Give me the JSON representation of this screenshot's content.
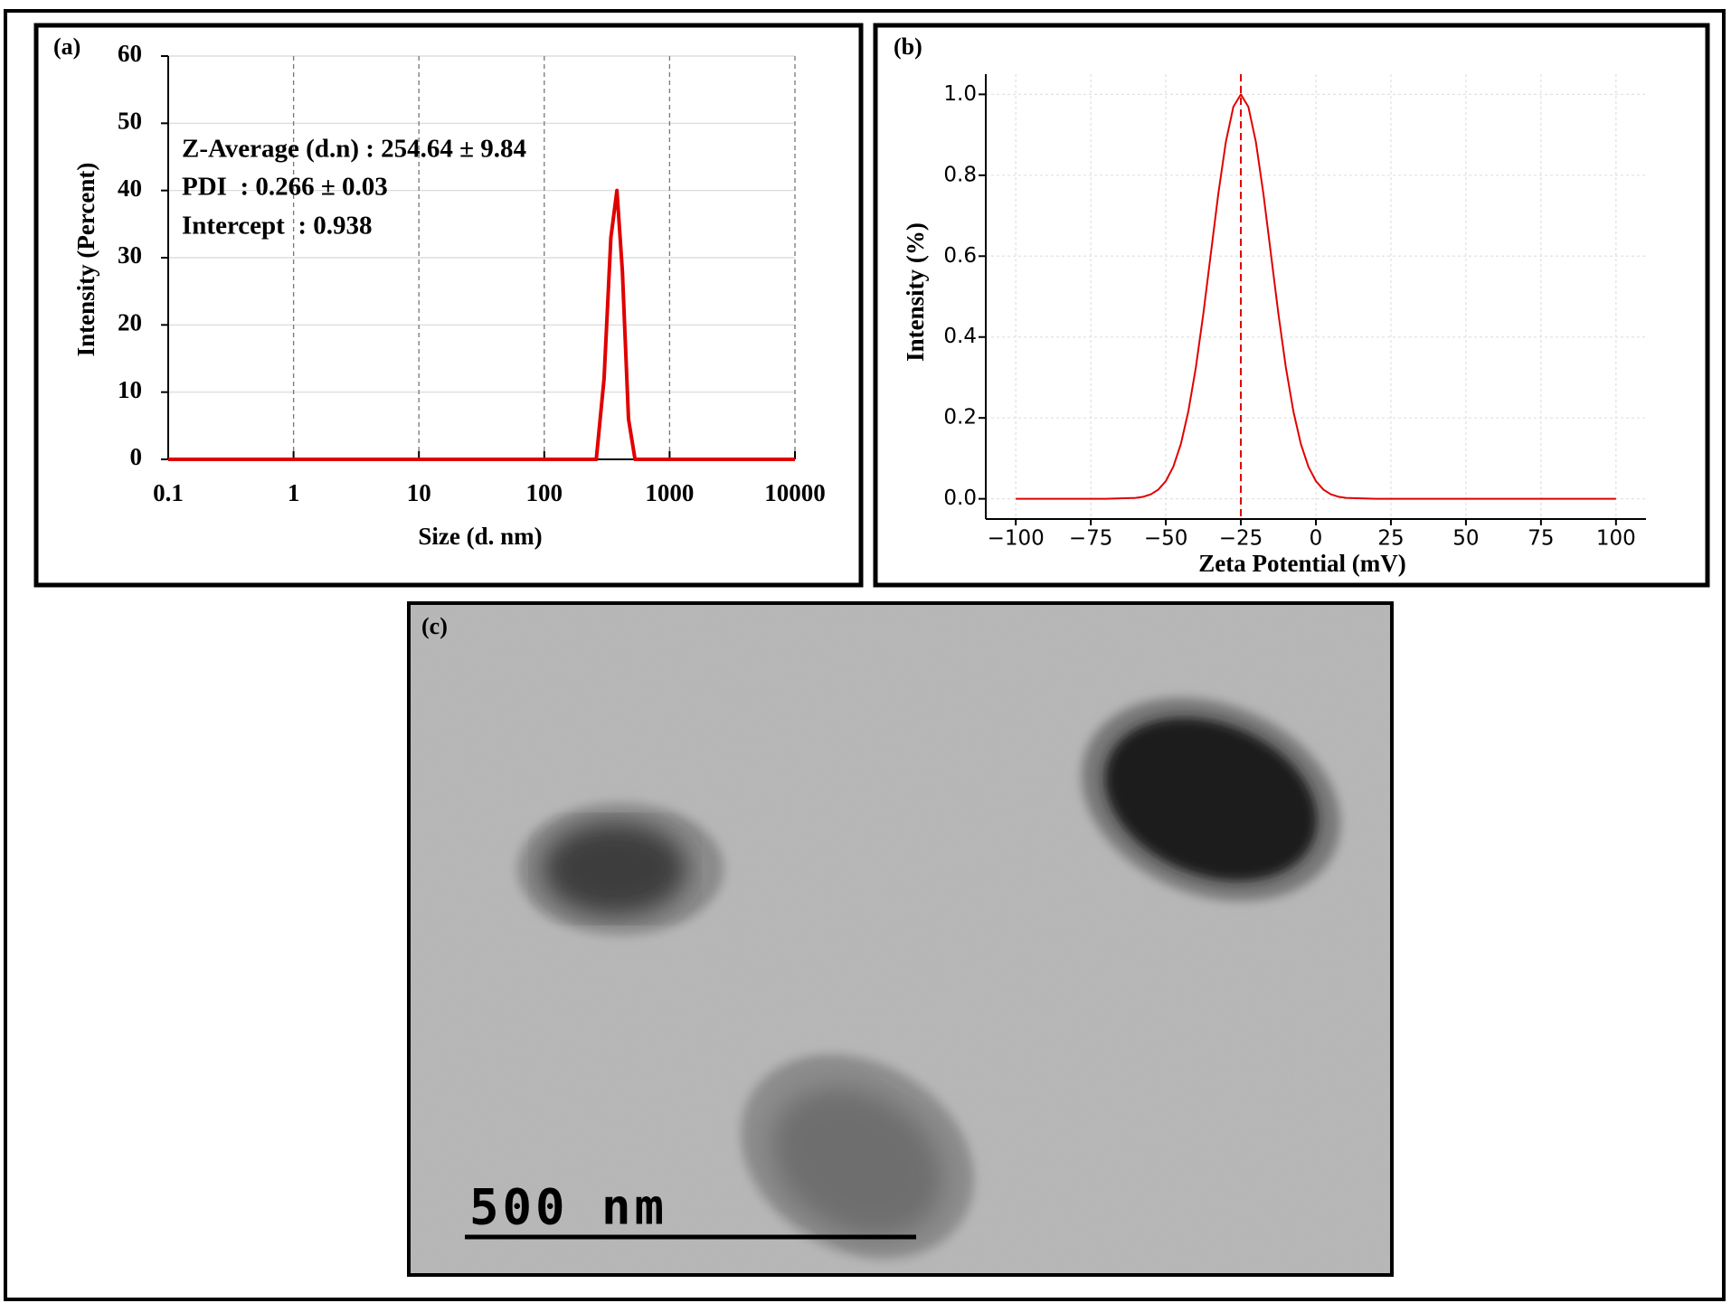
{
  "chart_data": [
    {
      "type": "line",
      "panel_label": "(a)",
      "x_label": "Size (d. nm)",
      "y_label": "Intensity (Percent)",
      "annotations": [
        "Z-Average (d.n) : 254.64 ± 9.84",
        "PDI  : 0.266 ± 0.03",
        "Intercept  : 0.938"
      ],
      "x": [
        0.1,
        260,
        300,
        340,
        380,
        420,
        470,
        530,
        10000
      ],
      "values": [
        0,
        0,
        12,
        33,
        40,
        28,
        6,
        0,
        0
      ],
      "color": "#e00000",
      "xscale": "log",
      "xlim": [
        0.1,
        10000
      ],
      "xticks": [
        0.1,
        1,
        10,
        100,
        1000,
        10000
      ],
      "ylim": [
        0,
        60
      ],
      "yticks": [
        0,
        10,
        20,
        30,
        40,
        50,
        60
      ],
      "grid": true
    },
    {
      "type": "line",
      "panel_label": "(b)",
      "x_label": "Zeta Potential (mV)",
      "y_label": "Intensity (%)",
      "x": [
        -100,
        -90,
        -80,
        -70,
        -60,
        -57.5,
        -55,
        -52.5,
        -50,
        -47.5,
        -45,
        -42.5,
        -40,
        -37.5,
        -35,
        -32.5,
        -30,
        -27.5,
        -25,
        -22.5,
        -20,
        -17.5,
        -15,
        -12.5,
        -10,
        -7.5,
        -5,
        -2.5,
        0,
        2.5,
        5,
        7.5,
        10,
        20,
        30,
        40,
        50,
        60,
        70,
        80,
        90,
        100
      ],
      "values": [
        0,
        0,
        0,
        0,
        0.0022,
        0.0051,
        0.0111,
        0.0228,
        0.0439,
        0.0796,
        0.1353,
        0.2163,
        0.3247,
        0.4578,
        0.6065,
        0.7548,
        0.8825,
        0.9692,
        1,
        0.9692,
        0.8825,
        0.7548,
        0.6065,
        0.4578,
        0.3247,
        0.2163,
        0.1353,
        0.0796,
        0.0439,
        0.0228,
        0.0111,
        0.0051,
        0.0022,
        0,
        0,
        0,
        0,
        0,
        0,
        0,
        0,
        0
      ],
      "color": "#e00000",
      "vline": -25,
      "xlim": [
        -110,
        110
      ],
      "xticks": [
        {
          "value": -100,
          "label": "−100"
        },
        {
          "value": -75,
          "label": "−75"
        },
        {
          "value": -50,
          "label": "−50"
        },
        {
          "value": -25,
          "label": "−25"
        },
        0,
        25,
        50,
        75,
        100
      ],
      "ylim": [
        -0.05,
        1.05
      ],
      "yticks": [
        {
          "value": 0,
          "label": "0.0"
        },
        {
          "value": 0.2,
          "label": "0.2"
        },
        {
          "value": 0.4,
          "label": "0.4"
        },
        {
          "value": 0.6,
          "label": "0.6"
        },
        {
          "value": 0.8,
          "label": "0.8"
        },
        {
          "value": 1,
          "label": "1.0"
        }
      ],
      "grid": true
    }
  ],
  "image": {
    "panel_label": "(c)",
    "scale_bar": "500 nm"
  }
}
